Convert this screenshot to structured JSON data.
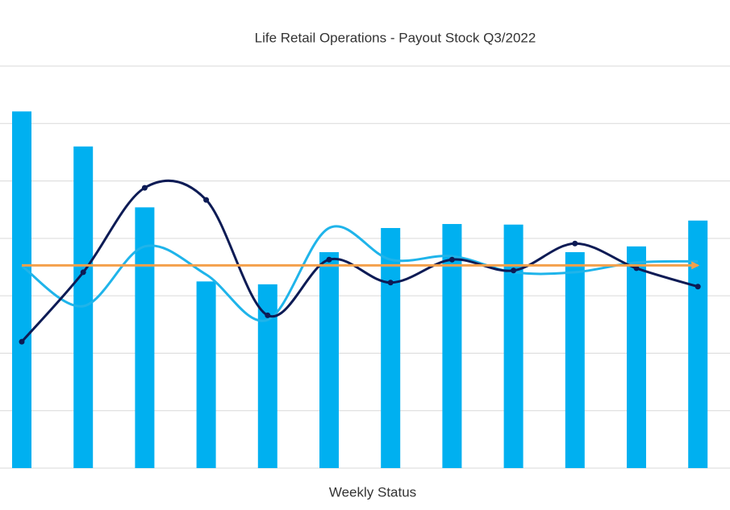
{
  "chart_data": {
    "type": "bar",
    "title": "Life Retail Operations - Payout Stock Q3/2022",
    "x_label": "Weekly Status",
    "categories": [
      null,
      null,
      null,
      null,
      null,
      null,
      null,
      null,
      null,
      null,
      null,
      null
    ],
    "values": [
      6.21,
      5.6,
      4.54,
      3.25,
      3.2,
      3.76,
      4.18,
      4.25,
      4.24,
      3.76,
      3.86,
      4.31
    ],
    "color": "#00b0f0",
    "lines": [
      {
        "color": "#1fb4ea",
        "values": [
          3.52,
          2.82,
          3.86,
          3.37,
          2.58,
          4.18,
          3.63,
          3.69,
          3.41,
          3.41,
          3.58,
          3.6
        ]
      },
      {
        "color": "#0d1b55",
        "values": [
          2.2,
          3.41,
          4.88,
          4.67,
          2.66,
          3.63,
          3.23,
          3.63,
          3.44,
          3.91,
          3.48,
          3.16
        ]
      },
      {
        "color": "#f4a04a",
        "values": [
          3.53,
          3.53,
          3.53,
          3.53,
          3.53,
          3.53,
          3.53,
          3.53,
          3.53,
          3.53,
          3.53,
          3.53
        ]
      }
    ],
    "ylim": [
      0,
      7
    ],
    "yticks": [
      0,
      1,
      2,
      3,
      4,
      5,
      6,
      7
    ],
    "grid": true
  }
}
